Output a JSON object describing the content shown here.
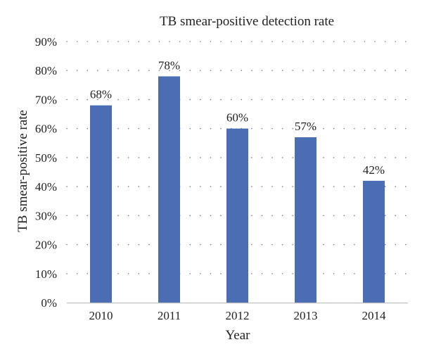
{
  "chart_data": {
    "type": "bar",
    "title": "TB smear-positive detection rate",
    "xlabel": "Year",
    "ylabel": "TB smear-positive rate",
    "categories": [
      "2010",
      "2011",
      "2012",
      "2013",
      "2014"
    ],
    "values": [
      68,
      78,
      60,
      57,
      42
    ],
    "data_labels": [
      "68%",
      "78%",
      "60%",
      "57%",
      "42%"
    ],
    "ylim": [
      0,
      90
    ],
    "yticks": [
      0,
      10,
      20,
      30,
      40,
      50,
      60,
      70,
      80,
      90
    ],
    "ytick_labels": [
      "0%",
      "10%",
      "20%",
      "30%",
      "40%",
      "50%",
      "60%",
      "70%",
      "80%",
      "90%"
    ],
    "grid": "horizontal dotted",
    "legend": "none",
    "bar_color": "#4a6db3"
  }
}
